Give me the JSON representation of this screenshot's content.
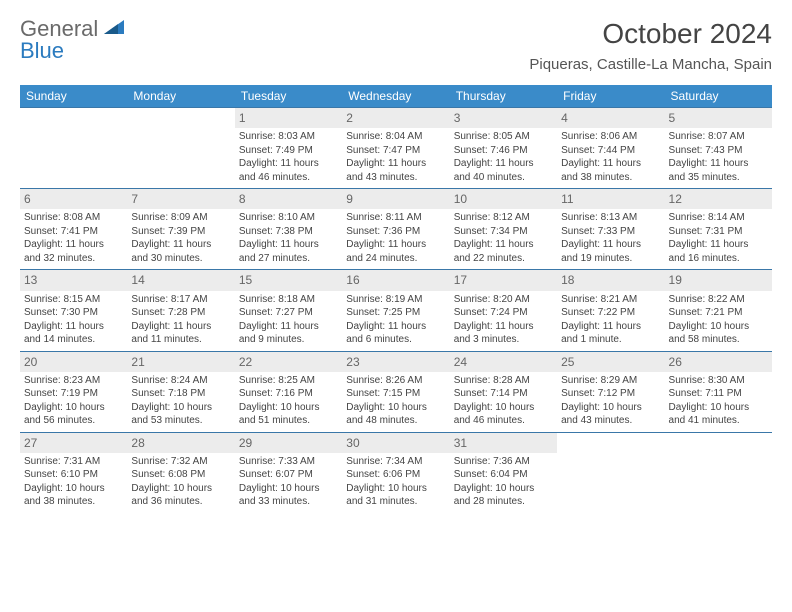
{
  "brand": {
    "name_top": "General",
    "name_bottom": "Blue"
  },
  "title": "October 2024",
  "location": "Piqueras, Castille-La Mancha, Spain",
  "colors": {
    "header_bg": "#3a8bc9",
    "header_text": "#ffffff",
    "divider": "#3a77a8",
    "subdivider": "#d0d0d0",
    "daybar_bg": "#ececec",
    "text": "#444444",
    "brand_gray": "#6a6a6a",
    "brand_blue": "#2b7bbf"
  },
  "day_headers": [
    "Sunday",
    "Monday",
    "Tuesday",
    "Wednesday",
    "Thursday",
    "Friday",
    "Saturday"
  ],
  "weeks": [
    [
      null,
      null,
      {
        "n": "1",
        "sunrise": "Sunrise: 8:03 AM",
        "sunset": "Sunset: 7:49 PM",
        "day1": "Daylight: 11 hours",
        "day2": "and 46 minutes."
      },
      {
        "n": "2",
        "sunrise": "Sunrise: 8:04 AM",
        "sunset": "Sunset: 7:47 PM",
        "day1": "Daylight: 11 hours",
        "day2": "and 43 minutes."
      },
      {
        "n": "3",
        "sunrise": "Sunrise: 8:05 AM",
        "sunset": "Sunset: 7:46 PM",
        "day1": "Daylight: 11 hours",
        "day2": "and 40 minutes."
      },
      {
        "n": "4",
        "sunrise": "Sunrise: 8:06 AM",
        "sunset": "Sunset: 7:44 PM",
        "day1": "Daylight: 11 hours",
        "day2": "and 38 minutes."
      },
      {
        "n": "5",
        "sunrise": "Sunrise: 8:07 AM",
        "sunset": "Sunset: 7:43 PM",
        "day1": "Daylight: 11 hours",
        "day2": "and 35 minutes."
      }
    ],
    [
      {
        "n": "6",
        "sunrise": "Sunrise: 8:08 AM",
        "sunset": "Sunset: 7:41 PM",
        "day1": "Daylight: 11 hours",
        "day2": "and 32 minutes."
      },
      {
        "n": "7",
        "sunrise": "Sunrise: 8:09 AM",
        "sunset": "Sunset: 7:39 PM",
        "day1": "Daylight: 11 hours",
        "day2": "and 30 minutes."
      },
      {
        "n": "8",
        "sunrise": "Sunrise: 8:10 AM",
        "sunset": "Sunset: 7:38 PM",
        "day1": "Daylight: 11 hours",
        "day2": "and 27 minutes."
      },
      {
        "n": "9",
        "sunrise": "Sunrise: 8:11 AM",
        "sunset": "Sunset: 7:36 PM",
        "day1": "Daylight: 11 hours",
        "day2": "and 24 minutes."
      },
      {
        "n": "10",
        "sunrise": "Sunrise: 8:12 AM",
        "sunset": "Sunset: 7:34 PM",
        "day1": "Daylight: 11 hours",
        "day2": "and 22 minutes."
      },
      {
        "n": "11",
        "sunrise": "Sunrise: 8:13 AM",
        "sunset": "Sunset: 7:33 PM",
        "day1": "Daylight: 11 hours",
        "day2": "and 19 minutes."
      },
      {
        "n": "12",
        "sunrise": "Sunrise: 8:14 AM",
        "sunset": "Sunset: 7:31 PM",
        "day1": "Daylight: 11 hours",
        "day2": "and 16 minutes."
      }
    ],
    [
      {
        "n": "13",
        "sunrise": "Sunrise: 8:15 AM",
        "sunset": "Sunset: 7:30 PM",
        "day1": "Daylight: 11 hours",
        "day2": "and 14 minutes."
      },
      {
        "n": "14",
        "sunrise": "Sunrise: 8:17 AM",
        "sunset": "Sunset: 7:28 PM",
        "day1": "Daylight: 11 hours",
        "day2": "and 11 minutes."
      },
      {
        "n": "15",
        "sunrise": "Sunrise: 8:18 AM",
        "sunset": "Sunset: 7:27 PM",
        "day1": "Daylight: 11 hours",
        "day2": "and 9 minutes."
      },
      {
        "n": "16",
        "sunrise": "Sunrise: 8:19 AM",
        "sunset": "Sunset: 7:25 PM",
        "day1": "Daylight: 11 hours",
        "day2": "and 6 minutes."
      },
      {
        "n": "17",
        "sunrise": "Sunrise: 8:20 AM",
        "sunset": "Sunset: 7:24 PM",
        "day1": "Daylight: 11 hours",
        "day2": "and 3 minutes."
      },
      {
        "n": "18",
        "sunrise": "Sunrise: 8:21 AM",
        "sunset": "Sunset: 7:22 PM",
        "day1": "Daylight: 11 hours",
        "day2": "and 1 minute."
      },
      {
        "n": "19",
        "sunrise": "Sunrise: 8:22 AM",
        "sunset": "Sunset: 7:21 PM",
        "day1": "Daylight: 10 hours",
        "day2": "and 58 minutes."
      }
    ],
    [
      {
        "n": "20",
        "sunrise": "Sunrise: 8:23 AM",
        "sunset": "Sunset: 7:19 PM",
        "day1": "Daylight: 10 hours",
        "day2": "and 56 minutes."
      },
      {
        "n": "21",
        "sunrise": "Sunrise: 8:24 AM",
        "sunset": "Sunset: 7:18 PM",
        "day1": "Daylight: 10 hours",
        "day2": "and 53 minutes."
      },
      {
        "n": "22",
        "sunrise": "Sunrise: 8:25 AM",
        "sunset": "Sunset: 7:16 PM",
        "day1": "Daylight: 10 hours",
        "day2": "and 51 minutes."
      },
      {
        "n": "23",
        "sunrise": "Sunrise: 8:26 AM",
        "sunset": "Sunset: 7:15 PM",
        "day1": "Daylight: 10 hours",
        "day2": "and 48 minutes."
      },
      {
        "n": "24",
        "sunrise": "Sunrise: 8:28 AM",
        "sunset": "Sunset: 7:14 PM",
        "day1": "Daylight: 10 hours",
        "day2": "and 46 minutes."
      },
      {
        "n": "25",
        "sunrise": "Sunrise: 8:29 AM",
        "sunset": "Sunset: 7:12 PM",
        "day1": "Daylight: 10 hours",
        "day2": "and 43 minutes."
      },
      {
        "n": "26",
        "sunrise": "Sunrise: 8:30 AM",
        "sunset": "Sunset: 7:11 PM",
        "day1": "Daylight: 10 hours",
        "day2": "and 41 minutes."
      }
    ],
    [
      {
        "n": "27",
        "sunrise": "Sunrise: 7:31 AM",
        "sunset": "Sunset: 6:10 PM",
        "day1": "Daylight: 10 hours",
        "day2": "and 38 minutes."
      },
      {
        "n": "28",
        "sunrise": "Sunrise: 7:32 AM",
        "sunset": "Sunset: 6:08 PM",
        "day1": "Daylight: 10 hours",
        "day2": "and 36 minutes."
      },
      {
        "n": "29",
        "sunrise": "Sunrise: 7:33 AM",
        "sunset": "Sunset: 6:07 PM",
        "day1": "Daylight: 10 hours",
        "day2": "and 33 minutes."
      },
      {
        "n": "30",
        "sunrise": "Sunrise: 7:34 AM",
        "sunset": "Sunset: 6:06 PM",
        "day1": "Daylight: 10 hours",
        "day2": "and 31 minutes."
      },
      {
        "n": "31",
        "sunrise": "Sunrise: 7:36 AM",
        "sunset": "Sunset: 6:04 PM",
        "day1": "Daylight: 10 hours",
        "day2": "and 28 minutes."
      },
      null,
      null
    ]
  ]
}
